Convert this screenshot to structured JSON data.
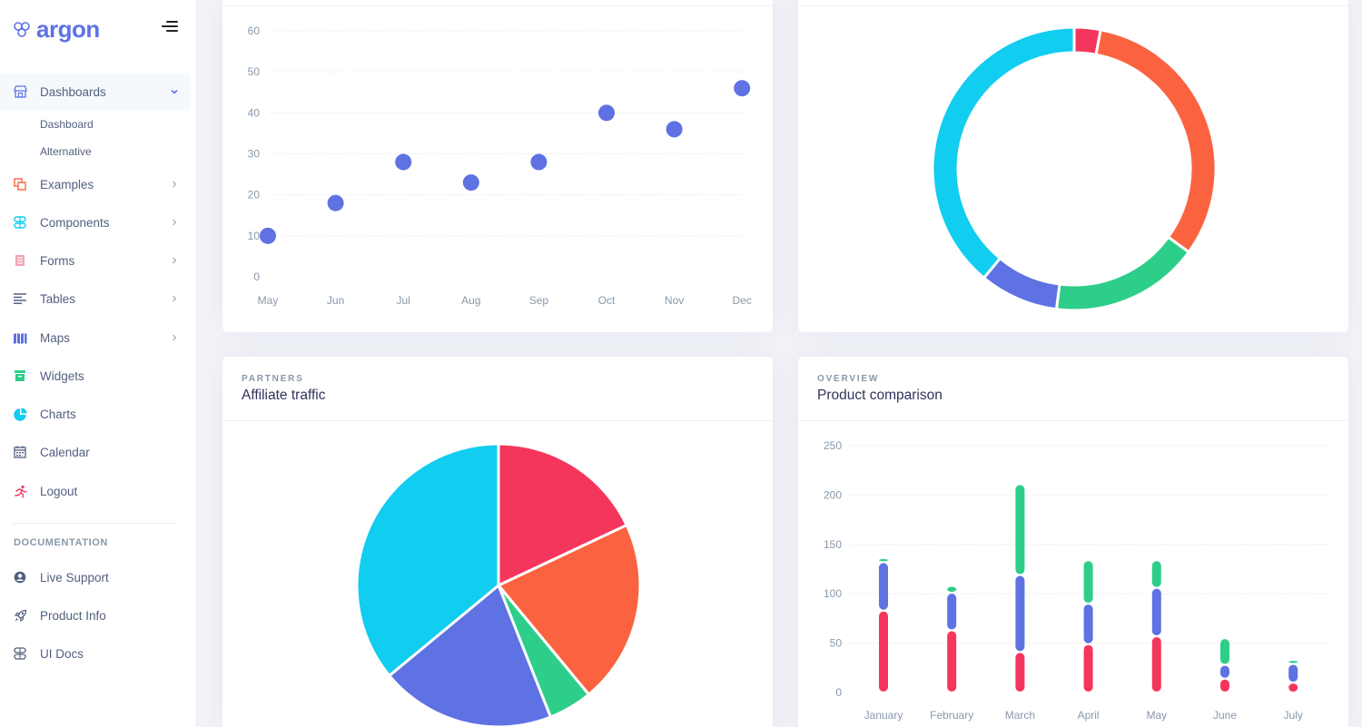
{
  "brand": {
    "name": "argon"
  },
  "sidebar": {
    "items": [
      {
        "label": "Dashboards",
        "icon": "shop-icon",
        "color": "#5e72e4",
        "active": true,
        "expanded": true
      },
      {
        "label": "Examples",
        "icon": "ungroup-icon",
        "color": "#fb6340"
      },
      {
        "label": "Components",
        "icon": "components-icon",
        "color": "#11cdef"
      },
      {
        "label": "Forms",
        "icon": "forms-icon",
        "color": "#f3a4b5"
      },
      {
        "label": "Tables",
        "icon": "align-left-icon",
        "color": "#525f7f"
      },
      {
        "label": "Maps",
        "icon": "map-icon",
        "color": "#5e72e4"
      },
      {
        "label": "Widgets",
        "icon": "archive-icon",
        "color": "#2dce89"
      },
      {
        "label": "Charts",
        "icon": "pie-chart-icon",
        "color": "#11cdef"
      },
      {
        "label": "Calendar",
        "icon": "calendar-icon",
        "color": "#525f7f"
      },
      {
        "label": "Logout",
        "icon": "running-icon",
        "color": "#f5365c"
      }
    ],
    "sub_items": [
      "Dashboard",
      "Alternative"
    ],
    "doc_heading": "DOCUMENTATION",
    "doc_items": [
      {
        "label": "Live Support",
        "icon": "user-circle-icon"
      },
      {
        "label": "Product Info",
        "icon": "rocket-icon"
      },
      {
        "label": "UI Docs",
        "icon": "ui-docs-icon"
      }
    ]
  },
  "colors": {
    "primary": "#5e72e4",
    "info": "#11cdef",
    "success": "#2dce89",
    "warning": "#fb6340",
    "danger": "#f5365c"
  },
  "affiliate_card": {
    "overline": "PARTNERS",
    "title": "Affiliate traffic"
  },
  "product_card": {
    "overline": "OVERVIEW",
    "title": "Product comparison"
  },
  "chart_data": [
    {
      "type": "scatter",
      "title": "",
      "categories": [
        "May",
        "Jun",
        "Jul",
        "Aug",
        "Sep",
        "Oct",
        "Nov",
        "Dec"
      ],
      "values": [
        10,
        18,
        28,
        23,
        28,
        40,
        36,
        46
      ],
      "yticks": [
        "0",
        "10",
        "20",
        "30",
        "40",
        "50",
        "60"
      ],
      "ylim": [
        0,
        60
      ]
    },
    {
      "type": "pie",
      "subtype": "doughnut",
      "slices": [
        {
          "value": 3,
          "color": "#f5365c"
        },
        {
          "value": 32,
          "color": "#fb6340"
        },
        {
          "value": 17,
          "color": "#2dce89"
        },
        {
          "value": 9,
          "color": "#5e72e4"
        },
        {
          "value": 39,
          "color": "#11cdef"
        }
      ]
    },
    {
      "type": "pie",
      "title": "Affiliate traffic",
      "slices": [
        {
          "value": 18,
          "color": "#f5365c"
        },
        {
          "value": 21,
          "color": "#fb6340"
        },
        {
          "value": 5,
          "color": "#2dce89"
        },
        {
          "value": 20,
          "color": "#5e72e4"
        },
        {
          "value": 36,
          "color": "#11cdef"
        }
      ]
    },
    {
      "type": "bar",
      "stacked": true,
      "title": "Product comparison",
      "categories": [
        "January",
        "February",
        "March",
        "April",
        "May",
        "June",
        "July"
      ],
      "yticks": [
        "0",
        "50",
        "100",
        "150",
        "200",
        "250"
      ],
      "ylim": [
        0,
        250
      ],
      "series": [
        {
          "name": "red",
          "color": "#f5365c",
          "values": [
            83,
            63,
            41,
            49,
            57,
            14,
            10
          ]
        },
        {
          "name": "blue",
          "color": "#5e72e4",
          "values": [
            49,
            38,
            78,
            41,
            49,
            14,
            19
          ]
        },
        {
          "name": "green",
          "color": "#2dce89",
          "values": [
            4,
            7,
            92,
            44,
            28,
            27,
            4
          ]
        }
      ]
    }
  ]
}
